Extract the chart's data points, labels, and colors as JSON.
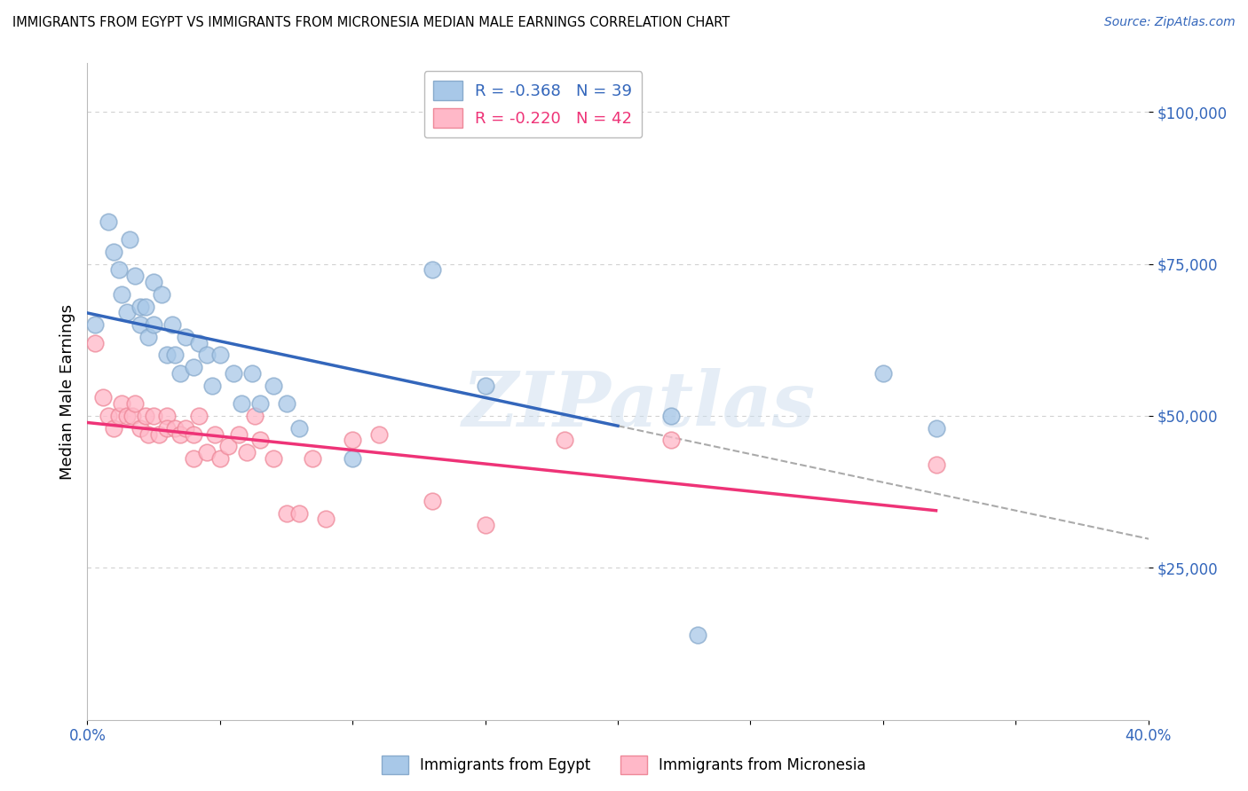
{
  "title": "IMMIGRANTS FROM EGYPT VS IMMIGRANTS FROM MICRONESIA MEDIAN MALE EARNINGS CORRELATION CHART",
  "source": "Source: ZipAtlas.com",
  "ylabel": "Median Male Earnings",
  "xlim": [
    0.0,
    0.4
  ],
  "ylim": [
    0,
    108000
  ],
  "yticks": [
    25000,
    50000,
    75000,
    100000
  ],
  "ytick_labels": [
    "$25,000",
    "$50,000",
    "$75,000",
    "$100,000"
  ],
  "xticks": [
    0.0,
    0.05,
    0.1,
    0.15,
    0.2,
    0.25,
    0.3,
    0.35,
    0.4
  ],
  "xtick_labels": [
    "0.0%",
    "",
    "",
    "",
    "",
    "",
    "",
    "",
    "40.0%"
  ],
  "egypt_color": "#A8C8E8",
  "egypt_edge_color": "#88AACC",
  "micronesia_color": "#FFB8C8",
  "micronesia_edge_color": "#EE8899",
  "egypt_line_color": "#3366BB",
  "micronesia_line_color": "#EE3377",
  "dashed_line_color": "#AAAAAA",
  "legend_R_egypt": "-0.368",
  "legend_N_egypt": "39",
  "legend_R_micronesia": "-0.220",
  "legend_N_micronesia": "42",
  "egypt_scatter_x": [
    0.003,
    0.008,
    0.01,
    0.012,
    0.013,
    0.015,
    0.016,
    0.018,
    0.02,
    0.02,
    0.022,
    0.023,
    0.025,
    0.025,
    0.028,
    0.03,
    0.032,
    0.033,
    0.035,
    0.037,
    0.04,
    0.042,
    0.045,
    0.047,
    0.05,
    0.055,
    0.058,
    0.062,
    0.065,
    0.07,
    0.075,
    0.08,
    0.1,
    0.13,
    0.15,
    0.22,
    0.23,
    0.3,
    0.32
  ],
  "egypt_scatter_y": [
    65000,
    82000,
    77000,
    74000,
    70000,
    67000,
    79000,
    73000,
    68000,
    65000,
    68000,
    63000,
    72000,
    65000,
    70000,
    60000,
    65000,
    60000,
    57000,
    63000,
    58000,
    62000,
    60000,
    55000,
    60000,
    57000,
    52000,
    57000,
    52000,
    55000,
    52000,
    48000,
    43000,
    74000,
    55000,
    50000,
    14000,
    57000,
    48000
  ],
  "micronesia_scatter_x": [
    0.003,
    0.006,
    0.008,
    0.01,
    0.012,
    0.013,
    0.015,
    0.017,
    0.018,
    0.02,
    0.022,
    0.023,
    0.025,
    0.027,
    0.03,
    0.03,
    0.033,
    0.035,
    0.037,
    0.04,
    0.04,
    0.042,
    0.045,
    0.048,
    0.05,
    0.053,
    0.057,
    0.06,
    0.063,
    0.065,
    0.07,
    0.075,
    0.08,
    0.085,
    0.09,
    0.1,
    0.11,
    0.13,
    0.15,
    0.18,
    0.22,
    0.32
  ],
  "micronesia_scatter_y": [
    62000,
    53000,
    50000,
    48000,
    50000,
    52000,
    50000,
    50000,
    52000,
    48000,
    50000,
    47000,
    50000,
    47000,
    50000,
    48000,
    48000,
    47000,
    48000,
    47000,
    43000,
    50000,
    44000,
    47000,
    43000,
    45000,
    47000,
    44000,
    50000,
    46000,
    43000,
    34000,
    34000,
    43000,
    33000,
    46000,
    47000,
    36000,
    32000,
    46000,
    46000,
    42000
  ],
  "watermark_text": "ZIPatlas",
  "background_color": "#FFFFFF",
  "grid_color": "#CCCCCC"
}
